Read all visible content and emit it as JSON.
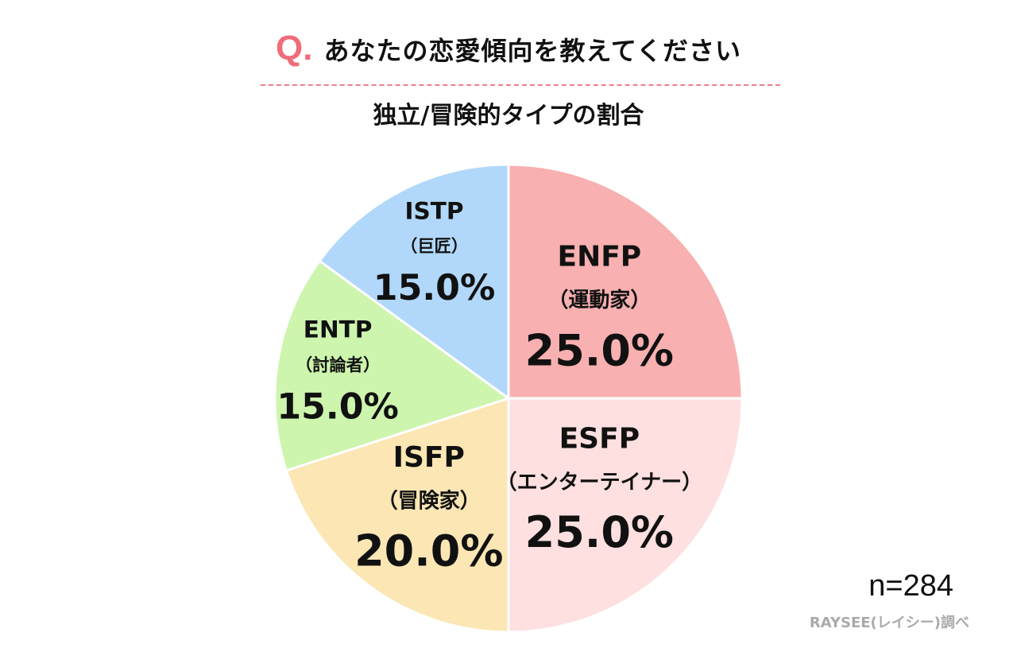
{
  "header": {
    "q_mark": "Q.",
    "question": "あなたの恋愛傾向を教えてください"
  },
  "subtitle": "独立/冒険的タイプの割合",
  "chart_data": {
    "type": "pie",
    "title": "独立/冒険的タイプの割合",
    "slices": [
      {
        "label": "ENFP",
        "sublabel": "（運動家）",
        "value": 25.0,
        "value_label": "25.0%",
        "color": "#f8b0b0"
      },
      {
        "label": "ESFP",
        "sublabel": "（エンターテイナー）",
        "value": 25.0,
        "value_label": "25.0%",
        "color": "#fde0df"
      },
      {
        "label": "ISFP",
        "sublabel": "（冒険家）",
        "value": 20.0,
        "value_label": "20.0%",
        "color": "#fbe6b4"
      },
      {
        "label": "ENTP",
        "sublabel": "（討論者）",
        "value": 15.0,
        "value_label": "15.0%",
        "color": "#cdf5ad"
      },
      {
        "label": "ISTP",
        "sublabel": "（巨匠）",
        "value": 15.0,
        "value_label": "15.0%",
        "color": "#b1d8fa"
      }
    ]
  },
  "footer": {
    "n_label": "n=284",
    "source": "RAYSEE(レイシー)調べ"
  }
}
